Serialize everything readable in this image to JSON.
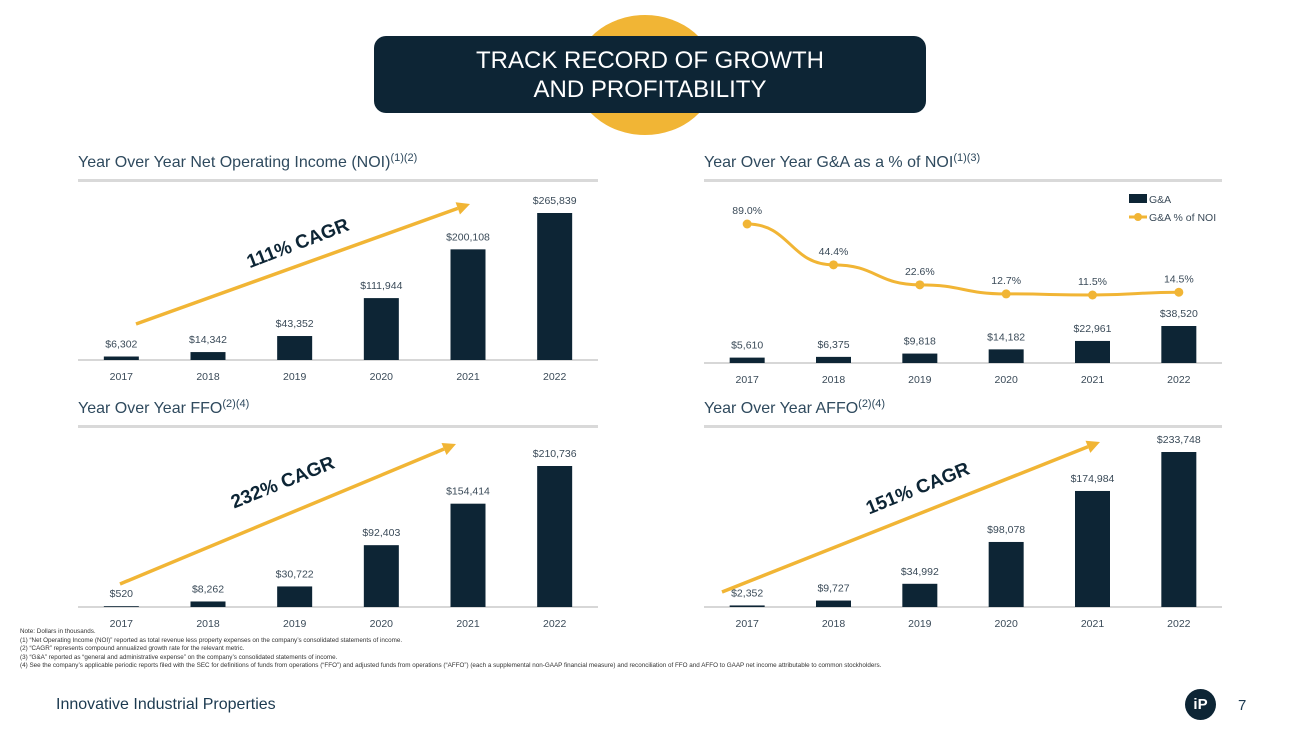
{
  "header": {
    "line1": "TRACK RECORD OF GROWTH",
    "line2": "AND PROFITABILITY"
  },
  "charts": {
    "noi": {
      "title": "Year Over Year Net Operating Income (NOI)",
      "sup": "(1)(2)",
      "cagr": "111% CAGR"
    },
    "ga": {
      "title": "Year Over Year G&A as a % of NOI",
      "sup": "(1)(3)",
      "legend_bar": "G&A",
      "legend_line": "G&A % of NOI"
    },
    "ffo": {
      "title": "Year Over Year FFO",
      "sup": "(2)(4)",
      "cagr": "232% CAGR"
    },
    "affo": {
      "title": "Year Over Year AFFO",
      "sup": "(2)(4)",
      "cagr": "151% CAGR"
    }
  },
  "chart_data": [
    {
      "type": "bar",
      "categories": [
        "2017",
        "2018",
        "2019",
        "2020",
        "2021",
        "2022"
      ],
      "values": [
        6302,
        14342,
        43352,
        111944,
        200108,
        265839
      ],
      "labels": [
        "$6,302",
        "$14,342",
        "$43,352",
        "$111,944",
        "$200,108",
        "$265,839"
      ],
      "ylim": [
        0,
        265839
      ]
    },
    {
      "type": "bar",
      "categories": [
        "2017",
        "2018",
        "2019",
        "2020",
        "2021",
        "2022"
      ],
      "series": [
        {
          "name": "G&A",
          "values": [
            5610,
            6375,
            9818,
            14182,
            22961,
            38520
          ],
          "labels": [
            "$5,610",
            "$6,375",
            "$9,818",
            "$14,182",
            "$22,961",
            "$38,520"
          ]
        },
        {
          "name": "G&A % of NOI",
          "values": [
            89.0,
            44.4,
            22.6,
            12.7,
            11.5,
            14.5
          ],
          "labels": [
            "89.0%",
            "44.4%",
            "22.6%",
            "12.7%",
            "11.5%",
            "14.5%"
          ]
        }
      ],
      "ylim": [
        0,
        38520
      ]
    },
    {
      "type": "bar",
      "categories": [
        "2017",
        "2018",
        "2019",
        "2020",
        "2021",
        "2022"
      ],
      "values": [
        520,
        8262,
        30722,
        92403,
        154414,
        210736
      ],
      "labels": [
        "$520",
        "$8,262",
        "$30,722",
        "$92,403",
        "$154,414",
        "$210,736"
      ],
      "ylim": [
        0,
        210736
      ]
    },
    {
      "type": "bar",
      "categories": [
        "2017",
        "2018",
        "2019",
        "2020",
        "2021",
        "2022"
      ],
      "values": [
        2352,
        9727,
        34992,
        98078,
        174984,
        233748
      ],
      "labels": [
        "$2,352",
        "$9,727",
        "$34,992",
        "$98,078",
        "$174,984",
        "$233,748"
      ],
      "ylim": [
        0,
        233748
      ]
    }
  ],
  "notes": [
    "Note: Dollars in thousands.",
    "(1)  “Net Operating Income (NOI)” reported as total revenue less property expenses on the company’s consolidated statements of income.",
    "(2)  “CAGR” represents compound annualized growth rate for the relevant metric.",
    "(3)  “G&A” reported as “general and administrative expense” on the company’s consolidated statements of income.",
    "(4)  See the company’s applicable periodic reports filed with the SEC for definitions of funds from operations (“FFO”) and adjusted funds from operations (“AFFO”) (each a supplemental non-GAAP financial measure) and reconciliation of FFO and AFFO to GAAP net income attributable to common stockholders."
  ],
  "footer": {
    "company": "Innovative Industrial Properties",
    "page": "7",
    "logo": "iP"
  },
  "colors": {
    "navy": "#0d2535",
    "gold": "#f1b535"
  }
}
